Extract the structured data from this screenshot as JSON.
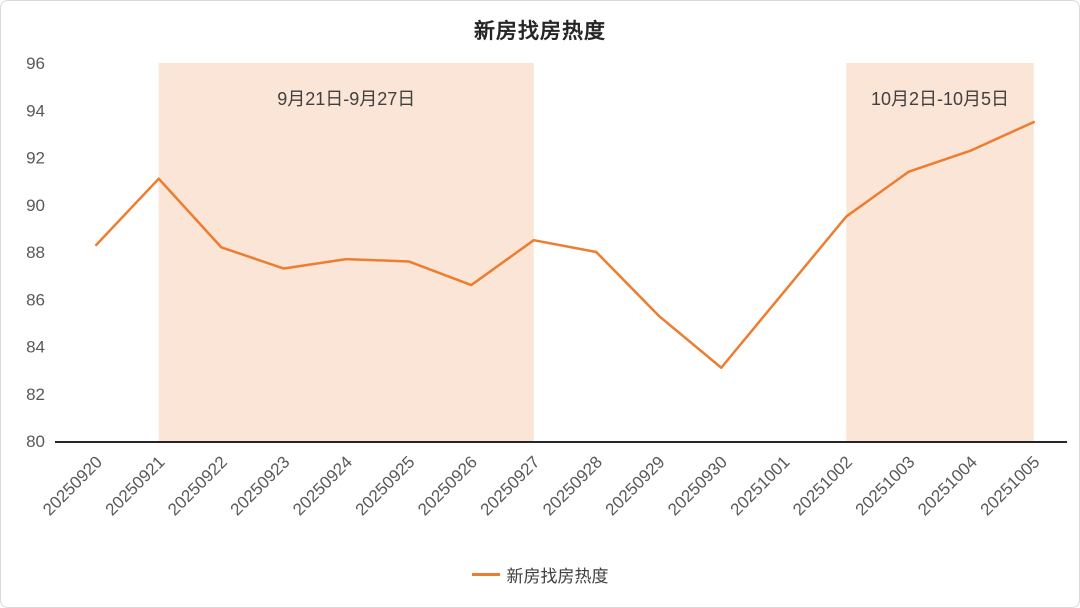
{
  "title": "新房找房热度",
  "legend": {
    "label": "新房找房热度",
    "color": "#ED7D31"
  },
  "chart_data": {
    "type": "line",
    "title": "新房找房热度",
    "categories": [
      "20250920",
      "20250921",
      "20250922",
      "20250923",
      "20250924",
      "20250925",
      "20250926",
      "20250927",
      "20250928",
      "20250929",
      "20250930",
      "20251001",
      "20251002",
      "20251003",
      "20251004",
      "20251005"
    ],
    "series": [
      {
        "name": "新房找房热度",
        "values": [
          88.3,
          91.1,
          88.2,
          87.3,
          87.7,
          87.6,
          86.6,
          88.5,
          88.0,
          85.3,
          83.1,
          86.3,
          89.5,
          91.4,
          92.3,
          93.5
        ]
      }
    ],
    "ylim": [
      80,
      96
    ],
    "ytick_step": 2,
    "xlabel": "",
    "ylabel": "",
    "grid": false,
    "legend_position": "bottom",
    "line_color": "#ED7D31",
    "band_color": "#FBE5D6",
    "axis_label_color": "#595959",
    "annotation_color": "#404040",
    "bands": [
      {
        "from_index": 1,
        "to_index": 7,
        "label": "9月21日-9月27日"
      },
      {
        "from_index": 12,
        "to_index": 15,
        "label": "10月2日-10月5日"
      }
    ]
  }
}
